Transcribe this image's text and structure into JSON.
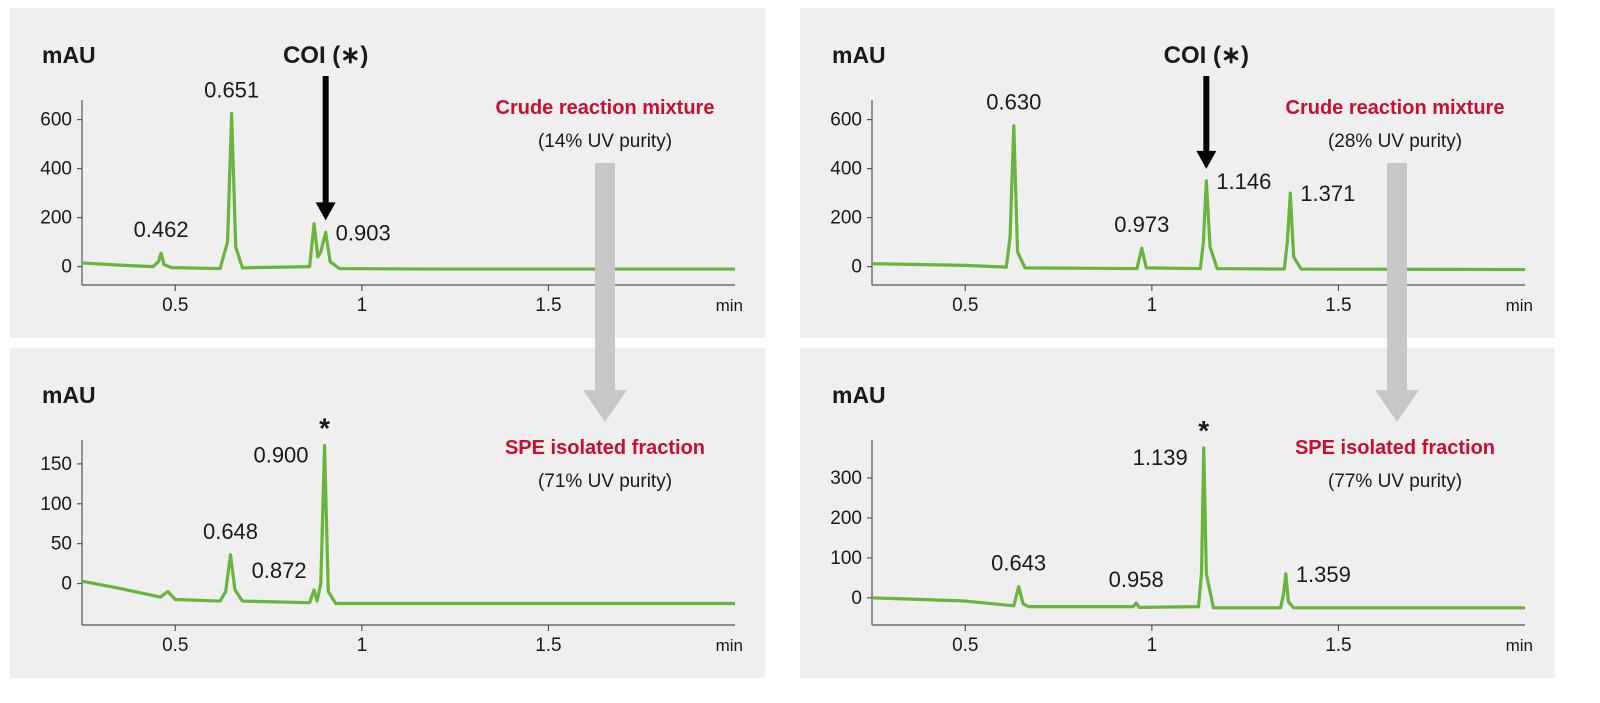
{
  "chart_data": [
    {
      "type": "line",
      "title": "Crude reaction mixture",
      "subtitle": "(14% UV purity)",
      "ylabel": "mAU",
      "xlabel": "min",
      "color": "#6ab43e",
      "xlim": [
        0.25,
        2.0
      ],
      "xticks": [
        0.5,
        1,
        1.5
      ],
      "ylim": [
        -75,
        680
      ],
      "yticks": [
        0,
        200,
        400,
        600
      ],
      "x": [
        0.25,
        0.35,
        0.44,
        0.455,
        0.462,
        0.47,
        0.49,
        0.62,
        0.64,
        0.651,
        0.662,
        0.68,
        0.86,
        0.872,
        0.882,
        0.89,
        0.903,
        0.915,
        0.94,
        1.2,
        1.6,
        2.0
      ],
      "values": [
        15,
        6,
        0,
        20,
        55,
        8,
        -4,
        -8,
        100,
        625,
        80,
        -5,
        0,
        175,
        40,
        60,
        140,
        20,
        -8,
        -10,
        -10,
        -10
      ],
      "peaks": [
        {
          "label": "0.462",
          "x": 0.462,
          "y": 55
        },
        {
          "label": "0.651",
          "x": 0.651,
          "y": 625
        },
        {
          "label": "0.903",
          "x": 0.903,
          "y": 140
        }
      ],
      "annotation": {
        "text": "COI (∗)",
        "x": 0.903
      }
    },
    {
      "type": "line",
      "title": "SPE isolated fraction",
      "subtitle": "(71% UV purity)",
      "ylabel": "mAU",
      "xlabel": "min",
      "color": "#6ab43e",
      "xlim": [
        0.25,
        2.0
      ],
      "xticks": [
        0.5,
        1,
        1.5
      ],
      "ylim": [
        -52,
        180
      ],
      "yticks": [
        0,
        50,
        100,
        150
      ],
      "x": [
        0.25,
        0.35,
        0.46,
        0.48,
        0.5,
        0.62,
        0.635,
        0.648,
        0.66,
        0.68,
        0.86,
        0.872,
        0.88,
        0.89,
        0.9,
        0.91,
        0.93,
        1.2,
        2.0
      ],
      "values": [
        3,
        -6,
        -17,
        -10,
        -20,
        -22,
        -10,
        36,
        -8,
        -22,
        -24,
        -8,
        -22,
        0,
        173,
        -10,
        -25,
        -25,
        -25
      ],
      "peaks": [
        {
          "label": "0.648",
          "x": 0.648,
          "y": 36
        },
        {
          "label": "0.872",
          "x": 0.872,
          "y": -8
        },
        {
          "label": "0.900",
          "x": 0.9,
          "y": 173
        }
      ],
      "annotation": {
        "text": "*",
        "x": 0.9
      }
    },
    {
      "type": "line",
      "title": "Crude reaction mixture",
      "subtitle": "(28% UV purity)",
      "ylabel": "mAU",
      "xlabel": "min",
      "color": "#6ab43e",
      "xlim": [
        0.25,
        2.0
      ],
      "xticks": [
        0.5,
        1,
        1.5
      ],
      "ylim": [
        -75,
        680
      ],
      "yticks": [
        0,
        200,
        400,
        600
      ],
      "x": [
        0.25,
        0.5,
        0.61,
        0.62,
        0.63,
        0.64,
        0.66,
        0.96,
        0.973,
        0.985,
        1.13,
        1.138,
        1.146,
        1.156,
        1.175,
        1.355,
        1.363,
        1.371,
        1.38,
        1.4,
        2.0
      ],
      "values": [
        12,
        5,
        -2,
        120,
        575,
        60,
        -5,
        -8,
        75,
        -5,
        -8,
        100,
        350,
        80,
        -8,
        -10,
        100,
        300,
        40,
        -10,
        -12
      ],
      "peaks": [
        {
          "label": "0.630",
          "x": 0.63,
          "y": 575
        },
        {
          "label": "0.973",
          "x": 0.973,
          "y": 75
        },
        {
          "label": "1.146",
          "x": 1.146,
          "y": 350
        },
        {
          "label": "1.371",
          "x": 1.371,
          "y": 300
        }
      ],
      "annotation": {
        "text": "COI (∗)",
        "x": 1.146
      }
    },
    {
      "type": "line",
      "title": "SPE isolated fraction",
      "subtitle": "(77% UV purity)",
      "ylabel": "mAU",
      "xlabel": "min",
      "color": "#6ab43e",
      "xlim": [
        0.25,
        2.0
      ],
      "xticks": [
        0.5,
        1,
        1.5
      ],
      "ylim": [
        -68,
        395
      ],
      "yticks": [
        0,
        100,
        200,
        300
      ],
      "x": [
        0.25,
        0.5,
        0.63,
        0.643,
        0.655,
        0.67,
        0.95,
        0.958,
        0.966,
        1.125,
        1.133,
        1.139,
        1.146,
        1.165,
        1.345,
        1.353,
        1.359,
        1.366,
        1.38,
        2.0
      ],
      "values": [
        0,
        -8,
        -20,
        28,
        -15,
        -22,
        -22,
        -13,
        -24,
        -22,
        60,
        375,
        60,
        -25,
        -25,
        10,
        60,
        -10,
        -25,
        -25
      ],
      "peaks": [
        {
          "label": "0.643",
          "x": 0.643,
          "y": 28
        },
        {
          "label": "0.958",
          "x": 0.958,
          "y": -13
        },
        {
          "label": "1.139",
          "x": 1.139,
          "y": 375
        },
        {
          "label": "1.359",
          "x": 1.359,
          "y": 60
        }
      ],
      "annotation": {
        "text": "*",
        "x": 1.139
      }
    }
  ]
}
